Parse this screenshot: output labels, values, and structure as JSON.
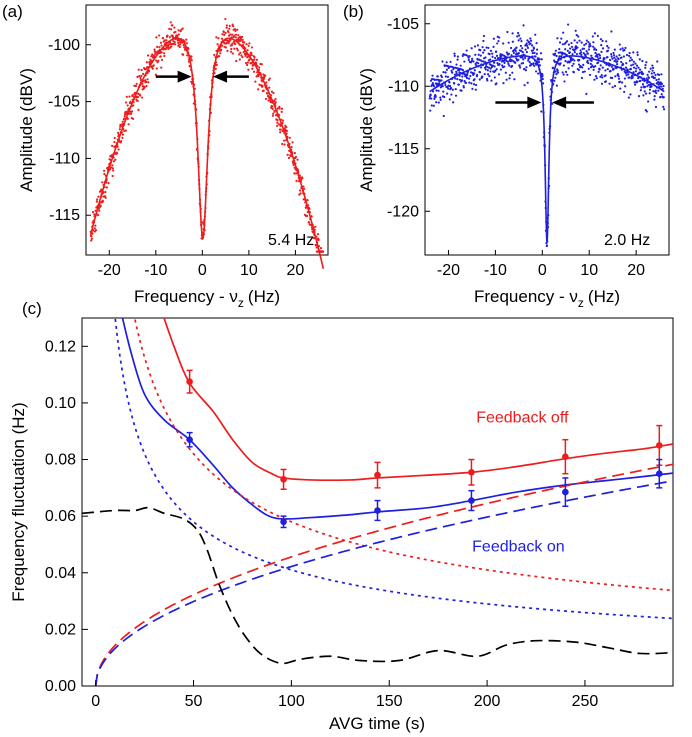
{
  "panel_labels": {
    "a": "(a)",
    "b": "(b)",
    "c": "(c)"
  },
  "colors": {
    "red": "#ee1c1c",
    "blue": "#1f1fe0",
    "black": "#000000"
  },
  "chart_data": [
    {
      "id": "a",
      "type": "scatter",
      "panel_label": "(a)",
      "xlabel_main": "Frequency - ν",
      "xlabel_sub": "z",
      "xlabel_unit": "(Hz)",
      "ylabel": "Amplitude (dBV)",
      "xlim": [
        -25,
        27
      ],
      "ylim": [
        -118.5,
        -96.5
      ],
      "xticks": [
        -20,
        -10,
        0,
        10,
        20
      ],
      "yticks": [
        -100,
        -105,
        -110,
        -115
      ],
      "annotation": "5.4 Hz",
      "color": "#ee1c1c",
      "fit": {
        "baseline": -97.3,
        "width_factor": 30,
        "dip_depth": 19.7,
        "dip_width": 1.35,
        "center": 0.1
      },
      "noise_amplitude": 1.0,
      "arrows": [
        {
          "from": -10,
          "to": -2.3,
          "y": -102.8
        },
        {
          "from": 10,
          "to": 2.3,
          "y": -102.8
        }
      ],
      "grid": false
    },
    {
      "id": "b",
      "type": "scatter",
      "panel_label": "(b)",
      "xlabel_main": "Frequency - ν",
      "xlabel_sub": "z",
      "xlabel_unit": "(Hz)",
      "ylabel": "Amplitude (dBV)",
      "xlim": [
        -25,
        27
      ],
      "ylim": [
        -123.5,
        -103.5
      ],
      "xticks": [
        -20,
        -10,
        0,
        10,
        20
      ],
      "yticks": [
        -105,
        -110,
        -115,
        -120
      ],
      "annotation": "2.0 Hz",
      "color": "#1f1fe0",
      "fit": {
        "baseline": -107.3,
        "width_factor": 200,
        "dip_depth": 15.2,
        "dip_width": 0.5,
        "center": 1.0
      },
      "noise_amplitude": 1.5,
      "arrows": [
        {
          "from": -10,
          "to": -0.2,
          "y": -111.3
        },
        {
          "from": 11,
          "to": 2.1,
          "y": -111.3
        }
      ],
      "grid": false
    },
    {
      "id": "c",
      "type": "line",
      "panel_label": "(c)",
      "xlabel": "AVG time (s)",
      "ylabel": "Frequency fluctuation (Hz)",
      "xlim": [
        -7,
        295
      ],
      "ylim": [
        0,
        0.13
      ],
      "xticks": [
        0,
        50,
        100,
        150,
        200,
        250
      ],
      "yticks": [
        0.0,
        0.02,
        0.04,
        0.06,
        0.08,
        0.1,
        0.12
      ],
      "grid": false,
      "annotations": [
        {
          "text": "Feedback off",
          "color": "#ee1c1c",
          "x": 218,
          "y": 0.093
        },
        {
          "text": "Feedback on",
          "color": "#1f1fe0",
          "x": 216,
          "y": 0.0475
        }
      ],
      "series": [
        {
          "color": "#ee1c1c",
          "style": "solid",
          "x": [
            30,
            40,
            48,
            60,
            70,
            80,
            90,
            96,
            110,
            130,
            144,
            170,
            192,
            215,
            240,
            260,
            280,
            295
          ],
          "y": [
            0.14,
            0.12,
            0.107,
            0.097,
            0.087,
            0.079,
            0.075,
            0.0735,
            0.0728,
            0.0728,
            0.0735,
            0.0745,
            0.0755,
            0.0775,
            0.0803,
            0.0822,
            0.0838,
            0.0855
          ]
        },
        {
          "color": "#1f1fe0",
          "style": "solid",
          "x": [
            12,
            18,
            25,
            35,
            48,
            60,
            70,
            80,
            88,
            96,
            110,
            130,
            144,
            170,
            192,
            215,
            240,
            260,
            280,
            295
          ],
          "y": [
            0.135,
            0.118,
            0.103,
            0.094,
            0.087,
            0.078,
            0.07,
            0.064,
            0.0602,
            0.059,
            0.0595,
            0.0605,
            0.0615,
            0.063,
            0.0655,
            0.0685,
            0.071,
            0.0725,
            0.074,
            0.0752
          ]
        },
        {
          "color": "#ee1c1c",
          "style": "short-dash",
          "func": "a/sqrt(x)",
          "a": 0.58,
          "xmin": 18,
          "xmax": 295
        },
        {
          "color": "#1f1fe0",
          "style": "short-dash",
          "func": "a/sqrt(x)",
          "a": 0.41,
          "xmin": 10,
          "xmax": 295
        },
        {
          "color": "#ee1c1c",
          "style": "long-dash",
          "func": "b*sqrt(x)",
          "b": 0.00456,
          "xmin": 0,
          "xmax": 295
        },
        {
          "color": "#1f1fe0",
          "style": "long-dash",
          "func": "b*sqrt(x)",
          "b": 0.00422,
          "xmin": 0,
          "xmax": 295
        },
        {
          "color": "#000000",
          "style": "long-dash",
          "x": [
            -7,
            10,
            20,
            27,
            35,
            45,
            52,
            57,
            63,
            70,
            77,
            85,
            95,
            105,
            120,
            135,
            155,
            175,
            195,
            210,
            225,
            245,
            262,
            278,
            295
          ],
          "y": [
            0.061,
            0.062,
            0.062,
            0.063,
            0.061,
            0.059,
            0.055,
            0.048,
            0.036,
            0.025,
            0.017,
            0.011,
            0.008,
            0.0095,
            0.0105,
            0.009,
            0.009,
            0.0125,
            0.0105,
            0.0145,
            0.016,
            0.0155,
            0.0135,
            0.0115,
            0.0118
          ]
        }
      ],
      "points": [
        {
          "color": "#ee1c1c",
          "x": [
            48,
            96,
            144,
            192,
            240,
            288
          ],
          "y": [
            0.1075,
            0.073,
            0.0745,
            0.0755,
            0.081,
            0.085
          ],
          "err": [
            0.004,
            0.0035,
            0.0045,
            0.0045,
            0.006,
            0.007
          ]
        },
        {
          "color": "#1f1fe0",
          "x": [
            48,
            96,
            144,
            192,
            240,
            288
          ],
          "y": [
            0.087,
            0.058,
            0.062,
            0.0655,
            0.0685,
            0.075
          ],
          "err": [
            0.0025,
            0.002,
            0.0035,
            0.0035,
            0.005,
            0.005
          ]
        }
      ]
    }
  ]
}
